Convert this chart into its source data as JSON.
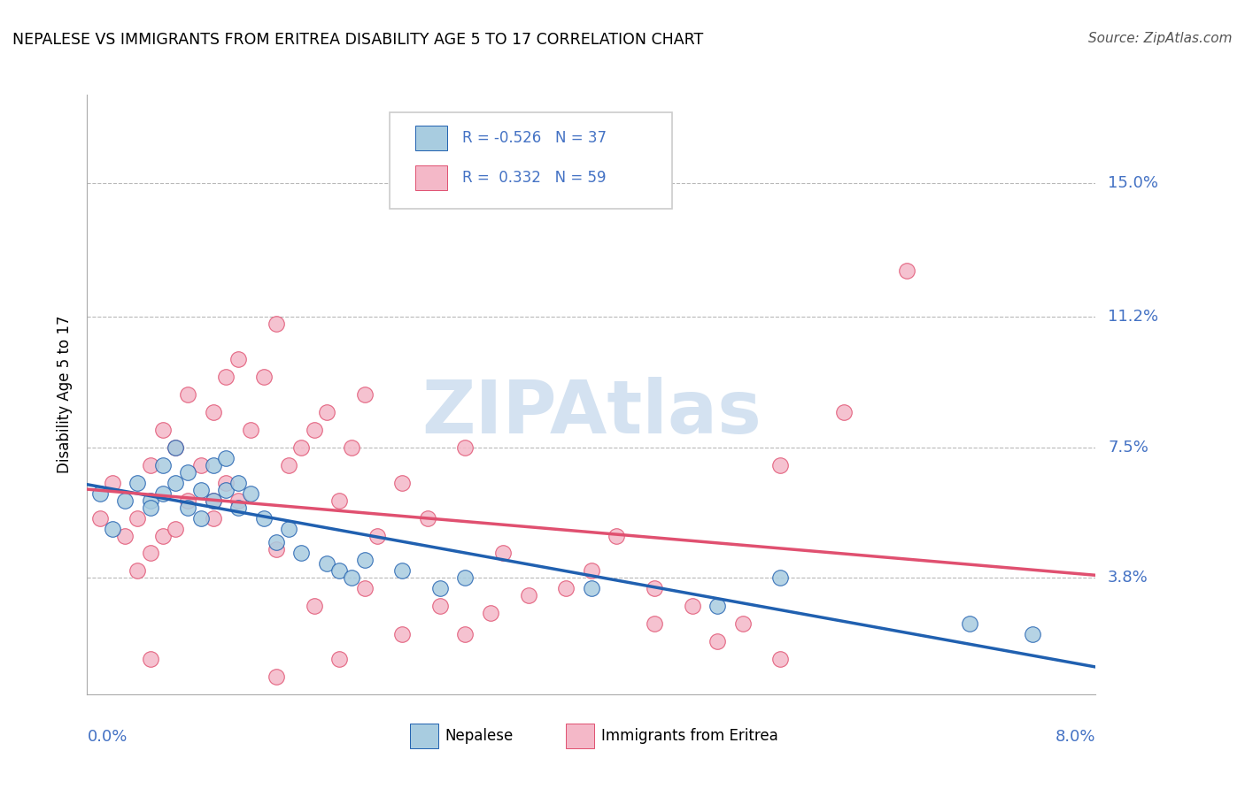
{
  "title": "NEPALESE VS IMMIGRANTS FROM ERITREA DISABILITY AGE 5 TO 17 CORRELATION CHART",
  "source": "Source: ZipAtlas.com",
  "ylabel": "Disability Age 5 to 17",
  "ytick_labels": [
    "3.8%",
    "7.5%",
    "11.2%",
    "15.0%"
  ],
  "ytick_values": [
    0.038,
    0.075,
    0.112,
    0.15
  ],
  "xlim": [
    0.0,
    0.08
  ],
  "ylim": [
    0.005,
    0.175
  ],
  "color_blue": "#a8cce0",
  "color_pink": "#f4b8c8",
  "color_blue_line": "#2060b0",
  "color_pink_line": "#e05070",
  "color_label": "#4472c4",
  "watermark": "ZIPAtlas",
  "watermark_color": "#b8cfe8",
  "nepalese_x": [
    0.001,
    0.002,
    0.003,
    0.004,
    0.005,
    0.005,
    0.006,
    0.006,
    0.007,
    0.007,
    0.008,
    0.008,
    0.009,
    0.009,
    0.01,
    0.01,
    0.011,
    0.011,
    0.012,
    0.012,
    0.013,
    0.014,
    0.015,
    0.016,
    0.017,
    0.019,
    0.02,
    0.021,
    0.022,
    0.025,
    0.028,
    0.03,
    0.04,
    0.05,
    0.055,
    0.07,
    0.075
  ],
  "nepalese_y": [
    0.062,
    0.052,
    0.06,
    0.065,
    0.06,
    0.058,
    0.07,
    0.062,
    0.075,
    0.065,
    0.068,
    0.058,
    0.063,
    0.055,
    0.07,
    0.06,
    0.072,
    0.063,
    0.065,
    0.058,
    0.062,
    0.055,
    0.048,
    0.052,
    0.045,
    0.042,
    0.04,
    0.038,
    0.043,
    0.04,
    0.035,
    0.038,
    0.035,
    0.03,
    0.038,
    0.025,
    0.022
  ],
  "eritrea_x": [
    0.001,
    0.002,
    0.003,
    0.004,
    0.004,
    0.005,
    0.005,
    0.006,
    0.006,
    0.007,
    0.007,
    0.008,
    0.008,
    0.009,
    0.01,
    0.01,
    0.011,
    0.011,
    0.012,
    0.012,
    0.013,
    0.014,
    0.015,
    0.015,
    0.016,
    0.017,
    0.018,
    0.019,
    0.02,
    0.021,
    0.022,
    0.023,
    0.025,
    0.025,
    0.027,
    0.028,
    0.03,
    0.032,
    0.033,
    0.035,
    0.038,
    0.04,
    0.042,
    0.045,
    0.045,
    0.048,
    0.05,
    0.052,
    0.055,
    0.055,
    0.01,
    0.018,
    0.02,
    0.022,
    0.03,
    0.015,
    0.06,
    0.065,
    0.005
  ],
  "eritrea_y": [
    0.055,
    0.065,
    0.05,
    0.055,
    0.04,
    0.07,
    0.045,
    0.08,
    0.05,
    0.075,
    0.052,
    0.09,
    0.06,
    0.07,
    0.085,
    0.055,
    0.095,
    0.065,
    0.1,
    0.06,
    0.08,
    0.095,
    0.11,
    0.046,
    0.07,
    0.075,
    0.08,
    0.085,
    0.06,
    0.075,
    0.09,
    0.05,
    0.065,
    0.022,
    0.055,
    0.03,
    0.075,
    0.028,
    0.045,
    0.033,
    0.035,
    0.04,
    0.05,
    0.035,
    0.025,
    0.03,
    0.02,
    0.025,
    0.015,
    0.07,
    0.06,
    0.03,
    0.015,
    0.035,
    0.022,
    0.01,
    0.085,
    0.125,
    0.015
  ]
}
